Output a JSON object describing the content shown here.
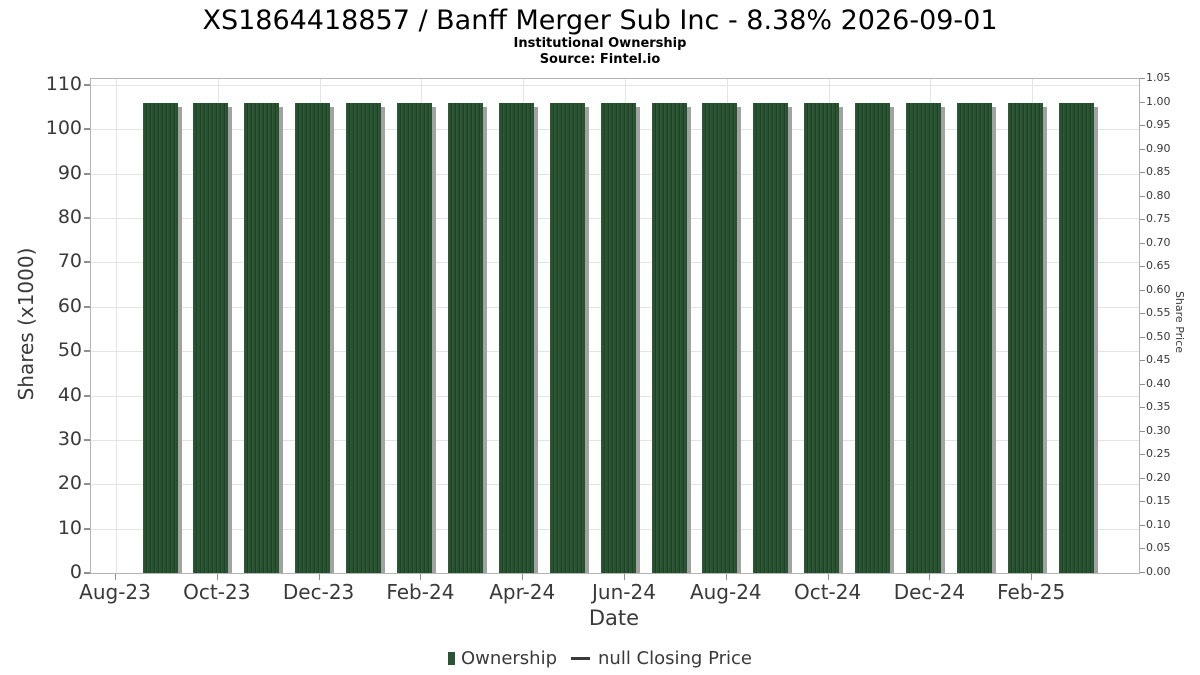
{
  "header": {
    "title": "XS1864418857 / Banff Merger Sub Inc - 8.38% 2026-09-01",
    "subtitle": "Institutional Ownership",
    "source": "Source: Fintel.io"
  },
  "chart_data": {
    "type": "bar",
    "title": "XS1864418857 / Banff Merger Sub Inc - 8.38% 2026-09-01",
    "subtitle": "Institutional Ownership",
    "source": "Source: Fintel.io",
    "xlabel": "Date",
    "ylabel_left": "Shares (x1000)",
    "ylabel_right": "Share Price",
    "categories": [
      "Aug-23",
      "Sep-23",
      "Oct-23",
      "Nov-23",
      "Dec-23",
      "Jan-24",
      "Feb-24",
      "Mar-24",
      "Apr-24",
      "May-24",
      "Jun-24",
      "Jul-24",
      "Aug-24",
      "Sep-24",
      "Oct-24",
      "Nov-24",
      "Dec-24",
      "Jan-25",
      "Feb-25"
    ],
    "x_tick_labels": [
      "Aug-23",
      "Oct-23",
      "Dec-23",
      "Feb-24",
      "Apr-24",
      "Jun-24",
      "Aug-24",
      "Oct-24",
      "Dec-24",
      "Feb-25"
    ],
    "series": [
      {
        "name": "Ownership",
        "type": "bar",
        "color": "#2b5434",
        "values": [
          106,
          106,
          106,
          106,
          106,
          106,
          106,
          106,
          106,
          106,
          106,
          106,
          106,
          106,
          106,
          106,
          106,
          106,
          106
        ]
      },
      {
        "name": "null Closing Price",
        "type": "line",
        "color": "#3a3a3a",
        "values": []
      }
    ],
    "ylim_left": [
      0,
      111.36
    ],
    "yticks_left": [
      0,
      10,
      20,
      30,
      40,
      50,
      60,
      70,
      80,
      90,
      100,
      110
    ],
    "ylim_right": [
      0,
      1.05
    ],
    "yticks_right": [
      0.0,
      0.05,
      0.1,
      0.15,
      0.2,
      0.25,
      0.3,
      0.35,
      0.4,
      0.45,
      0.5,
      0.55,
      0.6,
      0.65,
      0.7,
      0.75,
      0.8,
      0.85,
      0.9,
      0.95,
      1.0,
      1.05
    ],
    "grid": true,
    "legend_position": "bottom"
  },
  "legend": {
    "items": [
      {
        "label": "Ownership",
        "marker": "square",
        "color": "#2b5434"
      },
      {
        "label": "null Closing Price",
        "marker": "line",
        "color": "#3a3a3a"
      }
    ]
  },
  "colors": {
    "bar_fill": "#2b5434",
    "bar_shadow": "#a2a2a2",
    "gridline": "#e4e4e4",
    "plot_border": "#b4b4b4",
    "tick_text": "#3a3a3a",
    "title_text": "#000000",
    "background": "#ffffff"
  }
}
